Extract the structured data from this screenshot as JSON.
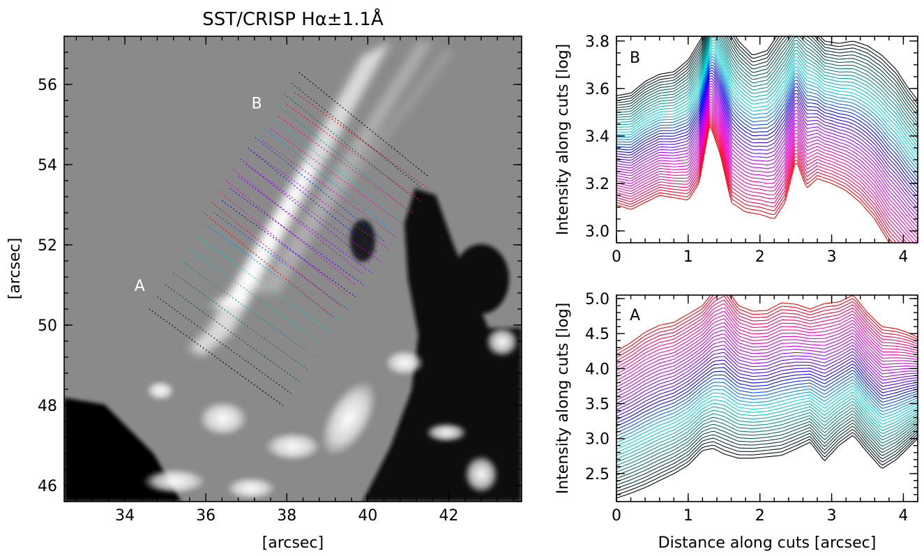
{
  "chart_data": [
    {
      "type": "image",
      "title": "SST/CRISP  Hα±1.1Å",
      "xlabel": "[arcsec]",
      "ylabel": "[arcsec]",
      "xlim": [
        32.5,
        43.8
      ],
      "ylim": [
        45.6,
        57.2
      ],
      "xticks": [
        34,
        36,
        38,
        40,
        42
      ],
      "yticks": [
        46,
        48,
        50,
        52,
        54,
        56
      ],
      "annotations": [
        {
          "text": "A",
          "x": 35.7,
          "y": 51.9,
          "color": "#ffffff"
        },
        {
          "text": "B",
          "x": 37.3,
          "y": 55.8,
          "color": "#ffffff"
        }
      ],
      "cut_groups": [
        {
          "name": "A",
          "start": [
            34.6,
            50.4
          ],
          "end": [
            37.9,
            48.0
          ],
          "offset": [
            0.2,
            0.3
          ],
          "count": 19
        },
        {
          "name": "B",
          "start": [
            38.3,
            56.3
          ],
          "end": [
            41.5,
            53.7
          ],
          "offset": [
            -0.18,
            -0.27
          ],
          "count": 14
        }
      ],
      "cut_colors": [
        "#000000",
        "#007070",
        "#00e0e0",
        "#0000ff",
        "#b000ff",
        "#ff00b0",
        "#ff0000"
      ]
    },
    {
      "type": "line",
      "panel_label": "B",
      "xlabel": "",
      "ylabel": "Intensity along cuts [log]",
      "xlim": [
        0,
        4.2
      ],
      "ylim": [
        2.95,
        3.82
      ],
      "xticks": [
        0,
        1,
        2,
        3,
        4
      ],
      "yticks": [
        3.0,
        3.2,
        3.4,
        3.6,
        3.8
      ],
      "n_series": 46,
      "color_order": "red (bottom) → magenta → blue → cyan → black (top)",
      "base_profile": {
        "x": [
          0,
          0.2,
          0.4,
          0.6,
          0.8,
          1.0,
          1.15,
          1.3,
          1.45,
          1.6,
          1.8,
          2.0,
          2.2,
          2.35,
          2.5,
          2.65,
          2.8,
          3.0,
          3.2,
          3.4,
          3.6,
          3.8,
          3.95,
          4.1,
          4.2
        ],
        "y": [
          3.11,
          3.09,
          3.12,
          3.15,
          3.14,
          3.13,
          3.2,
          3.45,
          3.32,
          3.12,
          3.08,
          3.07,
          3.05,
          3.12,
          3.3,
          3.18,
          3.22,
          3.2,
          3.17,
          3.12,
          3.05,
          2.95,
          2.9,
          2.85,
          2.82
        ]
      },
      "top_profile": {
        "x": [
          0,
          0.2,
          0.4,
          0.6,
          0.8,
          1.0,
          1.2,
          1.35,
          1.5,
          1.7,
          1.9,
          2.1,
          2.3,
          2.5,
          2.7,
          2.9,
          3.1,
          3.3,
          3.5,
          3.7,
          3.9,
          4.05,
          4.2
        ],
        "y": [
          3.57,
          3.58,
          3.63,
          3.66,
          3.67,
          3.72,
          3.82,
          3.96,
          3.9,
          3.8,
          3.74,
          3.76,
          3.85,
          3.92,
          3.87,
          3.8,
          3.79,
          3.8,
          3.78,
          3.74,
          3.68,
          3.61,
          3.55
        ]
      }
    },
    {
      "type": "line",
      "panel_label": "A",
      "xlabel": "Distance along cuts [arcsec]",
      "ylabel": "Intensity along cuts [log]",
      "xlim": [
        0,
        4.2
      ],
      "ylim": [
        2.1,
        5.05
      ],
      "xticks": [
        0,
        1,
        2,
        3,
        4
      ],
      "yticks": [
        2.5,
        3.0,
        3.5,
        4.0,
        4.5,
        5.0
      ],
      "n_series": 46,
      "color_order": "black (bottom) → teal → cyan → blue → magenta → red (top)",
      "base_profile": {
        "x": [
          0,
          0.2,
          0.4,
          0.6,
          0.8,
          1.0,
          1.2,
          1.35,
          1.5,
          1.7,
          1.9,
          2.1,
          2.3,
          2.5,
          2.7,
          2.9,
          3.1,
          3.3,
          3.5,
          3.7,
          3.9,
          4.05,
          4.2
        ],
        "y": [
          2.15,
          2.22,
          2.3,
          2.4,
          2.5,
          2.62,
          2.83,
          2.86,
          2.78,
          2.72,
          2.72,
          2.74,
          2.76,
          2.85,
          2.95,
          2.68,
          2.9,
          3.05,
          2.8,
          2.57,
          2.7,
          2.85,
          3.0
        ]
      },
      "top_profile": {
        "x": [
          0,
          0.2,
          0.4,
          0.6,
          0.8,
          1.0,
          1.2,
          1.35,
          1.5,
          1.7,
          1.9,
          2.1,
          2.3,
          2.5,
          2.7,
          2.9,
          3.1,
          3.3,
          3.5,
          3.7,
          3.9,
          4.05,
          4.2
        ],
        "y": [
          4.25,
          4.37,
          4.52,
          4.62,
          4.66,
          4.78,
          4.9,
          5.1,
          5.2,
          4.9,
          4.82,
          4.83,
          4.94,
          4.92,
          4.85,
          4.93,
          4.95,
          5.05,
          4.8,
          4.6,
          4.57,
          4.52,
          4.45
        ]
      }
    }
  ]
}
